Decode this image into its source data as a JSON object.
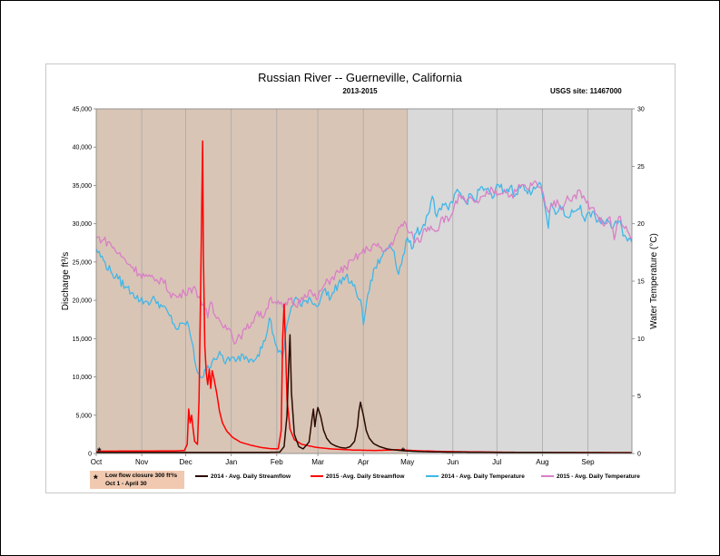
{
  "chart_data": {
    "type": "line",
    "title": "Russian River -- Guerneville, California",
    "subtitle": "2013-2015",
    "site_label": "USGS site: 11467000",
    "ylabel_left": "Discharge ft³/s",
    "ylabel_right": "Water Temperature (°C)",
    "ylim_left": [
      0,
      45000
    ],
    "ylim_right": [
      0,
      30
    ],
    "x_range_days": [
      0,
      365
    ],
    "y_ticks_left": [
      "0",
      "5,000",
      "10,000",
      "15,000",
      "20,000",
      "25,000",
      "30,000",
      "35,000",
      "40,000",
      "45,000"
    ],
    "y_ticks_right": [
      "0",
      "5",
      "10",
      "15",
      "20",
      "25",
      "30"
    ],
    "months": [
      "Oct",
      "Nov",
      "Dec",
      "Jan",
      "Feb",
      "Mar",
      "Apr",
      "May",
      "Jun",
      "Jul",
      "Aug",
      "Sep"
    ],
    "month_start_days": [
      0,
      31,
      61,
      92,
      123,
      151,
      182,
      212,
      243,
      273,
      304,
      335
    ],
    "closure_region_days": [
      0,
      212
    ],
    "closure_color": "#d9c5b6",
    "open_color": "#d9d9d9",
    "gridlines": true,
    "markers": [
      {
        "day": 2,
        "label": "*"
      },
      {
        "day": 209,
        "label": "*"
      }
    ],
    "closure_note": {
      "line1": "Low flow closure 300 ft³/s",
      "line2": "Oct 1 - April 30"
    },
    "series": [
      {
        "name": "2014 - Avg. Daily Streamflow",
        "axis": "left",
        "color": "#2b0a00",
        "points": [
          [
            0,
            150
          ],
          [
            115,
            150
          ],
          [
            125,
            180
          ],
          [
            128,
            900
          ],
          [
            130,
            5000
          ],
          [
            131,
            11000
          ],
          [
            132,
            15500
          ],
          [
            133,
            8000
          ],
          [
            135,
            2500
          ],
          [
            138,
            900
          ],
          [
            141,
            600
          ],
          [
            145,
            1500
          ],
          [
            147,
            4500
          ],
          [
            148,
            5800
          ],
          [
            149,
            3500
          ],
          [
            150,
            5000
          ],
          [
            151,
            6000
          ],
          [
            153,
            4800
          ],
          [
            155,
            3000
          ],
          [
            157,
            2000
          ],
          [
            160,
            1300
          ],
          [
            163,
            1000
          ],
          [
            166,
            800
          ],
          [
            170,
            700
          ],
          [
            173,
            900
          ],
          [
            176,
            1600
          ],
          [
            178,
            3500
          ],
          [
            179,
            5500
          ],
          [
            180,
            6700
          ],
          [
            182,
            5000
          ],
          [
            184,
            3000
          ],
          [
            186,
            2000
          ],
          [
            189,
            1300
          ],
          [
            193,
            900
          ],
          [
            198,
            600
          ],
          [
            204,
            450
          ],
          [
            210,
            350
          ],
          [
            220,
            250
          ],
          [
            240,
            180
          ],
          [
            365,
            100
          ]
        ]
      },
      {
        "name": "2015 -Avg. Daily Streamflow",
        "axis": "left",
        "color": "#ff0000",
        "points": [
          [
            0,
            300
          ],
          [
            55,
            350
          ],
          [
            60,
            380
          ],
          [
            62,
            1200
          ],
          [
            63,
            5800
          ],
          [
            64,
            4000
          ],
          [
            65,
            5000
          ],
          [
            66,
            3200
          ],
          [
            67,
            1600
          ],
          [
            69,
            1200
          ],
          [
            70,
            7000
          ],
          [
            71,
            20000
          ],
          [
            72,
            34000
          ],
          [
            72.5,
            40800
          ],
          [
            73,
            26000
          ],
          [
            74,
            14000
          ],
          [
            75,
            10500
          ],
          [
            76,
            9000
          ],
          [
            77,
            11000
          ],
          [
            78,
            8500
          ],
          [
            79,
            10800
          ],
          [
            80,
            10000
          ],
          [
            82,
            8000
          ],
          [
            84,
            5500
          ],
          [
            86,
            4000
          ],
          [
            89,
            2900
          ],
          [
            93,
            2100
          ],
          [
            98,
            1500
          ],
          [
            105,
            1100
          ],
          [
            112,
            800
          ],
          [
            118,
            650
          ],
          [
            124,
            600
          ],
          [
            126,
            3000
          ],
          [
            127,
            15000
          ],
          [
            128,
            19500
          ],
          [
            129,
            14000
          ],
          [
            130,
            7000
          ],
          [
            132,
            3200
          ],
          [
            135,
            1800
          ],
          [
            140,
            1200
          ],
          [
            150,
            800
          ],
          [
            160,
            600
          ],
          [
            175,
            450
          ],
          [
            190,
            400
          ],
          [
            200,
            450
          ],
          [
            205,
            500
          ],
          [
            210,
            450
          ],
          [
            220,
            350
          ],
          [
            240,
            250
          ],
          [
            270,
            180
          ],
          [
            300,
            140
          ],
          [
            365,
            120
          ]
        ]
      },
      {
        "name": "2014 - Avg. Daily Temperature",
        "axis": "right",
        "color": "#3fb7e8",
        "points": [
          [
            0,
            17.8
          ],
          [
            5,
            16.8
          ],
          [
            10,
            15.8
          ],
          [
            15,
            15.2
          ],
          [
            20,
            14.5
          ],
          [
            25,
            14.0
          ],
          [
            30,
            13.3
          ],
          [
            35,
            13.2
          ],
          [
            40,
            13.4
          ],
          [
            45,
            12.8
          ],
          [
            50,
            12.0
          ],
          [
            55,
            10.8
          ],
          [
            60,
            11.3
          ],
          [
            62,
            11.5
          ],
          [
            65,
            9.8
          ],
          [
            68,
            7.5
          ],
          [
            72,
            6.6
          ],
          [
            75,
            7.2
          ],
          [
            80,
            8.3
          ],
          [
            85,
            8.6
          ],
          [
            88,
            7.8
          ],
          [
            90,
            8.4
          ],
          [
            95,
            8.0
          ],
          [
            100,
            8.6
          ],
          [
            105,
            8.2
          ],
          [
            110,
            8.6
          ],
          [
            115,
            9.8
          ],
          [
            118,
            11.8
          ],
          [
            121,
            10.2
          ],
          [
            124,
            8.8
          ],
          [
            127,
            8.4
          ],
          [
            130,
            11.2
          ],
          [
            133,
            12.8
          ],
          [
            136,
            13.6
          ],
          [
            140,
            12.8
          ],
          [
            145,
            13.6
          ],
          [
            150,
            12.8
          ],
          [
            155,
            14.2
          ],
          [
            160,
            13.6
          ],
          [
            165,
            14.8
          ],
          [
            170,
            15.4
          ],
          [
            175,
            14.6
          ],
          [
            180,
            13.4
          ],
          [
            182,
            11.2
          ],
          [
            185,
            13.8
          ],
          [
            190,
            16.2
          ],
          [
            195,
            17.2
          ],
          [
            200,
            18.2
          ],
          [
            203,
            17.6
          ],
          [
            206,
            15.6
          ],
          [
            209,
            17.2
          ],
          [
            212,
            18.8
          ],
          [
            215,
            17.8
          ],
          [
            218,
            19.2
          ],
          [
            222,
            19.6
          ],
          [
            226,
            20.8
          ],
          [
            229,
            22.4
          ],
          [
            232,
            20.6
          ],
          [
            235,
            21.2
          ],
          [
            238,
            21.8
          ],
          [
            240,
            21.2
          ],
          [
            243,
            21.8
          ],
          [
            246,
            23.0
          ],
          [
            249,
            22.4
          ],
          [
            252,
            21.8
          ],
          [
            255,
            22.6
          ],
          [
            258,
            22.0
          ],
          [
            262,
            23.2
          ],
          [
            266,
            23.0
          ],
          [
            270,
            22.2
          ],
          [
            274,
            23.4
          ],
          [
            278,
            22.8
          ],
          [
            282,
            23.2
          ],
          [
            286,
            22.6
          ],
          [
            290,
            23.4
          ],
          [
            294,
            22.6
          ],
          [
            298,
            23.2
          ],
          [
            302,
            23.6
          ],
          [
            305,
            22.0
          ],
          [
            308,
            19.6
          ],
          [
            310,
            21.8
          ],
          [
            313,
            20.8
          ],
          [
            316,
            21.6
          ],
          [
            320,
            20.6
          ],
          [
            325,
            21.0
          ],
          [
            330,
            21.6
          ],
          [
            333,
            20.2
          ],
          [
            336,
            21.0
          ],
          [
            340,
            20.6
          ],
          [
            344,
            20.0
          ],
          [
            348,
            20.4
          ],
          [
            352,
            19.6
          ],
          [
            356,
            20.2
          ],
          [
            360,
            19.0
          ],
          [
            365,
            18.4
          ]
        ]
      },
      {
        "name": "2015 - Avg. Daily Temperature",
        "axis": "right",
        "color": "#d97fc6",
        "points": [
          [
            0,
            18.8
          ],
          [
            5,
            18.6
          ],
          [
            10,
            18.2
          ],
          [
            15,
            17.4
          ],
          [
            20,
            16.8
          ],
          [
            25,
            16.2
          ],
          [
            30,
            15.6
          ],
          [
            35,
            15.4
          ],
          [
            40,
            15.0
          ],
          [
            45,
            15.2
          ],
          [
            50,
            14.0
          ],
          [
            55,
            13.6
          ],
          [
            60,
            14.0
          ],
          [
            64,
            14.4
          ],
          [
            68,
            14.2
          ],
          [
            71,
            13.4
          ],
          [
            73,
            13.0
          ],
          [
            76,
            11.8
          ],
          [
            78,
            13.2
          ],
          [
            80,
            12.2
          ],
          [
            84,
            11.6
          ],
          [
            88,
            11.2
          ],
          [
            92,
            10.6
          ],
          [
            95,
            9.6
          ],
          [
            98,
            10.2
          ],
          [
            102,
            10.8
          ],
          [
            106,
            11.4
          ],
          [
            110,
            12.4
          ],
          [
            113,
            11.8
          ],
          [
            116,
            12.6
          ],
          [
            119,
            13.6
          ],
          [
            122,
            13.2
          ],
          [
            125,
            13.0
          ],
          [
            128,
            12.6
          ],
          [
            132,
            13.4
          ],
          [
            136,
            12.8
          ],
          [
            140,
            13.6
          ],
          [
            145,
            14.2
          ],
          [
            150,
            13.4
          ],
          [
            155,
            14.6
          ],
          [
            160,
            15.2
          ],
          [
            165,
            15.8
          ],
          [
            170,
            16.2
          ],
          [
            175,
            16.8
          ],
          [
            180,
            17.4
          ],
          [
            185,
            17.8
          ],
          [
            190,
            18.2
          ],
          [
            195,
            17.6
          ],
          [
            200,
            18.0
          ],
          [
            205,
            19.2
          ],
          [
            210,
            20.2
          ],
          [
            213,
            19.2
          ],
          [
            216,
            18.8
          ],
          [
            220,
            18.4
          ],
          [
            224,
            19.6
          ],
          [
            228,
            19.8
          ],
          [
            232,
            19.4
          ],
          [
            236,
            20.6
          ],
          [
            240,
            20.2
          ],
          [
            244,
            21.6
          ],
          [
            248,
            22.4
          ],
          [
            252,
            21.8
          ],
          [
            256,
            22.2
          ],
          [
            260,
            21.8
          ],
          [
            265,
            22.4
          ],
          [
            270,
            23.0
          ],
          [
            274,
            22.6
          ],
          [
            278,
            23.0
          ],
          [
            282,
            22.4
          ],
          [
            286,
            22.8
          ],
          [
            290,
            23.4
          ],
          [
            294,
            23.0
          ],
          [
            298,
            23.6
          ],
          [
            302,
            23.2
          ],
          [
            305,
            22.4
          ],
          [
            308,
            21.0
          ],
          [
            312,
            22.0
          ],
          [
            316,
            21.4
          ],
          [
            320,
            22.0
          ],
          [
            325,
            22.4
          ],
          [
            330,
            22.8
          ],
          [
            334,
            21.8
          ],
          [
            338,
            21.4
          ],
          [
            342,
            20.6
          ],
          [
            346,
            19.8
          ],
          [
            350,
            20.6
          ],
          [
            353,
            18.6
          ],
          [
            356,
            20.6
          ],
          [
            360,
            19.6
          ],
          [
            365,
            18.6
          ]
        ]
      }
    ]
  }
}
